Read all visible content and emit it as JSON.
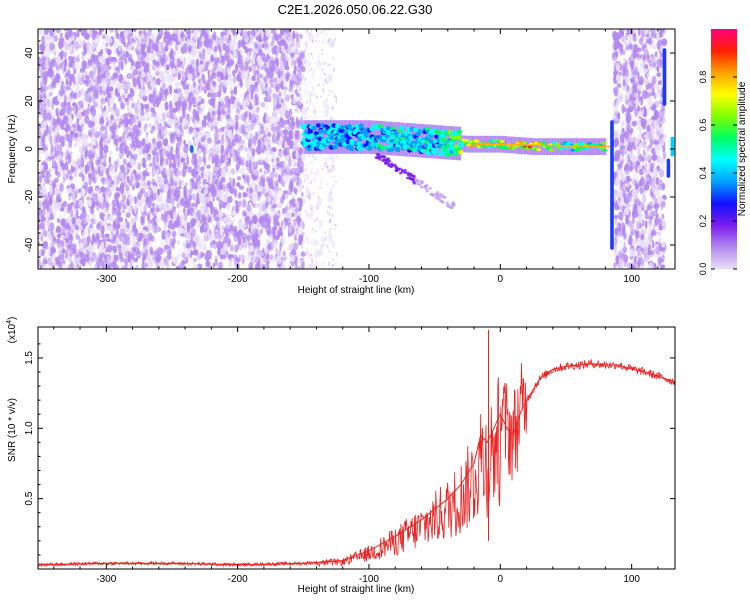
{
  "title": "C2E1.2026.050.06.22.G30",
  "chart_data": [
    {
      "type": "heatmap",
      "name": "spectrogram",
      "xlabel": "Height of straight line (km)",
      "ylabel": "Frequency (Hz)",
      "xlim": [
        -352,
        133
      ],
      "ylim": [
        -50,
        50
      ],
      "xticks": [
        -300,
        -200,
        -100,
        0,
        100
      ],
      "xtick_labels": [
        "-300",
        "-200",
        "-100",
        "0",
        "100"
      ],
      "yticks": [
        -40,
        -20,
        0,
        20,
        40
      ],
      "ytick_labels": [
        "-40",
        "-20",
        "0",
        "20",
        "40"
      ],
      "colorbar": {
        "label": "Normalized spectral amplitude",
        "range": [
          0,
          1
        ],
        "ticks": [
          0.0,
          0.2,
          0.4,
          0.6,
          0.8
        ],
        "tick_labels": [
          "0.0",
          "0.2",
          "0.4",
          "0.6",
          "0.8"
        ],
        "colors": [
          "#e8e0f8",
          "#b388f0",
          "#7a1cf0",
          "#1010ff",
          "#00a0ff",
          "#00ffff",
          "#00ff60",
          "#80ff00",
          "#ffff00",
          "#ffa000",
          "#ff2000",
          "#ff0080"
        ]
      },
      "signal_track": [
        {
          "x": -150,
          "f": 5,
          "a": 0.45
        },
        {
          "x": -125,
          "f": 5,
          "a": 0.45
        },
        {
          "x": -100,
          "f": 5,
          "a": 0.45
        },
        {
          "x": -75,
          "f": 4,
          "a": 0.5
        },
        {
          "x": -50,
          "f": 3,
          "a": 0.45
        },
        {
          "x": -25,
          "f": 2,
          "a": 0.7
        },
        {
          "x": 0,
          "f": 2,
          "a": 0.75
        },
        {
          "x": 25,
          "f": 1,
          "a": 0.8
        },
        {
          "x": 50,
          "f": 1,
          "a": 0.6
        },
        {
          "x": 80,
          "f": 1,
          "a": 0.6
        }
      ],
      "noise_regions": [
        {
          "x_start": -352,
          "x_end": -150,
          "density": "high"
        },
        {
          "x_start": -150,
          "x_end": -127,
          "density": "low"
        },
        {
          "x_start": 87,
          "x_end": 125,
          "density": "high"
        }
      ]
    },
    {
      "type": "line",
      "name": "snr",
      "xlabel": "Height of straight line (km)",
      "ylabel": "SNR (10 * v/v)",
      "y_multiplier": "(x10",
      "y_exponent": "4",
      "y_multiplier_close": ")",
      "xlim": [
        -352,
        133
      ],
      "ylim": [
        0,
        1.72
      ],
      "xticks": [
        -300,
        -200,
        -100,
        0,
        100
      ],
      "xtick_labels": [
        "-300",
        "-200",
        "-100",
        "0",
        "100"
      ],
      "yticks": [
        0.5,
        1.0,
        1.5
      ],
      "ytick_labels": [
        "0.5",
        "1.0",
        "1.5"
      ],
      "color": "#ee2020",
      "series": [
        {
          "name": "SNR",
          "x": [
            -352,
            -300,
            -250,
            -200,
            -150,
            -120,
            -100,
            -80,
            -60,
            -40,
            -30,
            -20,
            -15,
            -10,
            -5,
            0,
            5,
            10,
            15,
            20,
            30,
            40,
            50,
            60,
            70,
            80,
            90,
            100,
            110,
            120,
            133
          ],
          "y": [
            0.03,
            0.04,
            0.04,
            0.03,
            0.04,
            0.06,
            0.13,
            0.23,
            0.35,
            0.5,
            0.6,
            0.75,
            0.95,
            0.9,
            1.0,
            1.1,
            1.0,
            0.95,
            1.1,
            1.2,
            1.35,
            1.42,
            1.44,
            1.45,
            1.46,
            1.45,
            1.45,
            1.42,
            1.4,
            1.37,
            1.33
          ]
        }
      ]
    }
  ]
}
